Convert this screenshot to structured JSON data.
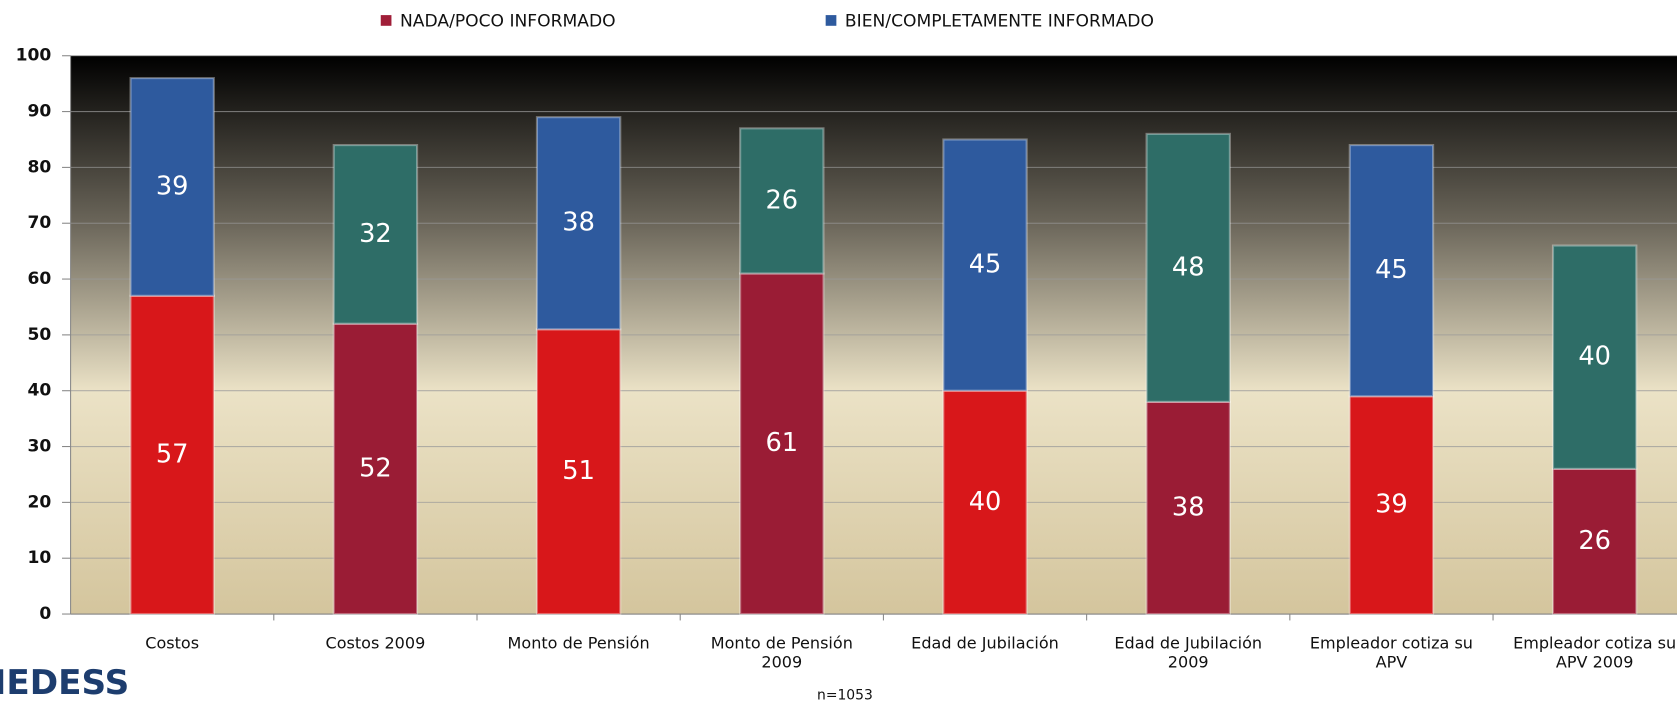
{
  "chart_data": {
    "type": "stacked_bar",
    "categories": [
      "Costos",
      "Costos 2009",
      "Monto de Pensión",
      "Monto de Pensión 2009",
      "Edad de Jubilación",
      "Edad de Jubilación 2009",
      "Empleador cotiza su APV",
      "Empleador cotiza su APV 2009"
    ],
    "series": [
      {
        "name": "NADA/POCO INFORMADO",
        "color": "#a01e38",
        "colors": [
          "#d8171a",
          "#9a1c35",
          "#d8171a",
          "#9a1c35",
          "#d8171a",
          "#9a1c35",
          "#d8171a",
          "#9a1c35"
        ],
        "values": [
          57,
          52,
          51,
          61,
          40,
          38,
          39,
          26
        ]
      },
      {
        "name": "BIEN/COMPLETAMENTE INFORMADO",
        "color": "#2e5a9e",
        "colors": [
          "#2e5a9e",
          "#2e6d67",
          "#2e5a9e",
          "#2e6d67",
          "#2e5a9e",
          "#2e6d67",
          "#2e5a9e",
          "#2e6d67"
        ],
        "values": [
          39,
          32,
          38,
          26,
          45,
          48,
          45,
          40
        ]
      }
    ],
    "ylim": [
      0,
      100
    ],
    "yticks": [
      0,
      10,
      20,
      30,
      40,
      50,
      60,
      70,
      80,
      90,
      100
    ],
    "grid": true,
    "legend": "top",
    "annotation": "n=1053",
    "logo": "IEDESS"
  }
}
